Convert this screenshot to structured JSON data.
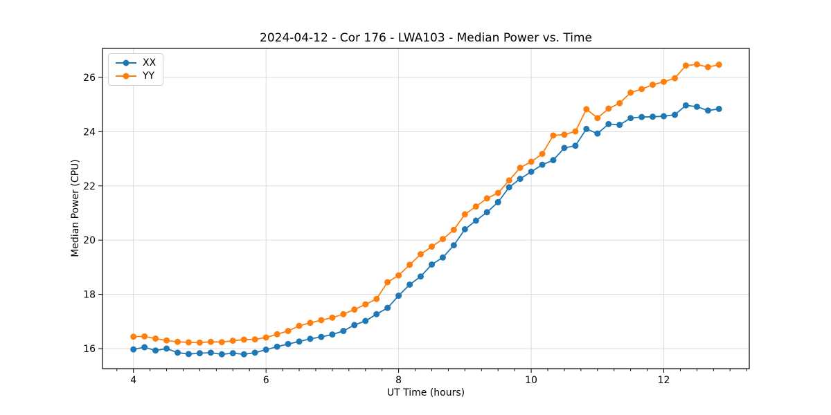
{
  "chart_data": {
    "type": "line",
    "title": "2024-04-12 - Cor 176 - LWA103 - Median Power vs. Time",
    "xlabel": "UT Time (hours)",
    "ylabel": "Median Power (CPU)",
    "xlim": [
      3.533,
      13.29
    ],
    "ylim": [
      15.26,
      27.07
    ],
    "x_ticks": [
      4,
      6,
      8,
      10,
      12
    ],
    "y_ticks": [
      16,
      18,
      20,
      22,
      24,
      26
    ],
    "x_minor_step": 0.25,
    "grid": true,
    "grid_color": "#dcdcdc",
    "legend_position": "upper-left",
    "x": [
      4.0,
      4.167,
      4.333,
      4.5,
      4.667,
      4.833,
      5.0,
      5.167,
      5.333,
      5.5,
      5.667,
      5.833,
      6.0,
      6.167,
      6.333,
      6.5,
      6.667,
      6.833,
      7.0,
      7.167,
      7.333,
      7.5,
      7.667,
      7.833,
      8.0,
      8.167,
      8.333,
      8.5,
      8.667,
      8.833,
      9.0,
      9.167,
      9.333,
      9.5,
      9.667,
      9.833,
      10.0,
      10.167,
      10.333,
      10.5,
      10.667,
      10.833,
      11.0,
      11.167,
      11.333,
      11.5,
      11.667,
      11.833,
      12.0,
      12.167,
      12.333,
      12.5,
      12.667,
      12.833
    ],
    "series": [
      {
        "name": "XX",
        "color": "#1f77b4",
        "values": [
          15.97,
          16.05,
          15.93,
          16.0,
          15.85,
          15.8,
          15.83,
          15.85,
          15.79,
          15.83,
          15.79,
          15.85,
          15.96,
          16.07,
          16.17,
          16.26,
          16.36,
          16.43,
          16.52,
          16.65,
          16.87,
          17.02,
          17.27,
          17.5,
          17.95,
          18.36,
          18.66,
          19.1,
          19.36,
          19.81,
          20.4,
          20.72,
          21.03,
          21.4,
          21.95,
          22.26,
          22.52,
          22.78,
          22.95,
          23.4,
          23.48,
          24.1,
          23.93,
          24.28,
          24.25,
          24.5,
          24.54,
          24.55,
          24.57,
          24.62,
          24.97,
          24.92,
          24.78,
          24.84
        ]
      },
      {
        "name": "YY",
        "color": "#ff7f0e",
        "values": [
          16.44,
          16.45,
          16.37,
          16.3,
          16.25,
          16.23,
          16.22,
          16.25,
          16.24,
          16.29,
          16.33,
          16.34,
          16.41,
          16.53,
          16.65,
          16.84,
          16.95,
          17.05,
          17.14,
          17.27,
          17.44,
          17.63,
          17.83,
          18.45,
          18.7,
          19.09,
          19.48,
          19.76,
          20.04,
          20.38,
          20.95,
          21.24,
          21.54,
          21.74,
          22.2,
          22.67,
          22.89,
          23.18,
          23.86,
          23.89,
          24.01,
          24.83,
          24.5,
          24.85,
          25.05,
          25.44,
          25.57,
          25.73,
          25.84,
          25.97,
          26.44,
          26.48,
          26.38,
          26.47
        ]
      }
    ]
  }
}
